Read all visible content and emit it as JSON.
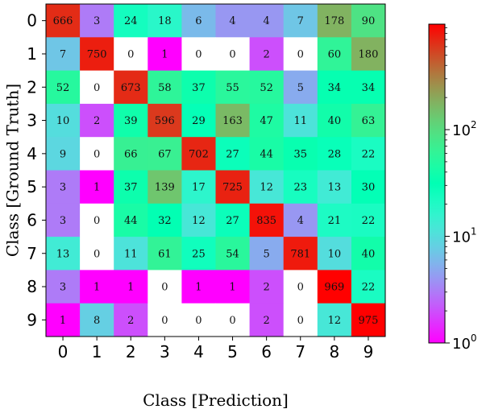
{
  "chart_data": {
    "type": "heatmap",
    "title": "",
    "xlabel": "Class [Prediction]",
    "ylabel": "Class [Ground Truth]",
    "x_categories": [
      "0",
      "1",
      "2",
      "3",
      "4",
      "5",
      "6",
      "7",
      "8",
      "9"
    ],
    "y_categories": [
      "0",
      "1",
      "2",
      "3",
      "4",
      "5",
      "6",
      "7",
      "8",
      "9"
    ],
    "values": [
      [
        666,
        3,
        24,
        18,
        6,
        4,
        4,
        7,
        178,
        90
      ],
      [
        7,
        750,
        0,
        1,
        0,
        0,
        2,
        0,
        60,
        180
      ],
      [
        52,
        0,
        673,
        58,
        37,
        55,
        52,
        5,
        34,
        34
      ],
      [
        10,
        2,
        39,
        596,
        29,
        163,
        47,
        11,
        40,
        63
      ],
      [
        9,
        0,
        66,
        67,
        702,
        27,
        44,
        35,
        28,
        22
      ],
      [
        3,
        1,
        37,
        139,
        17,
        725,
        12,
        23,
        13,
        30
      ],
      [
        3,
        0,
        44,
        32,
        12,
        27,
        835,
        4,
        21,
        22
      ],
      [
        13,
        0,
        11,
        61,
        25,
        54,
        5,
        781,
        10,
        40
      ],
      [
        3,
        1,
        1,
        0,
        1,
        1,
        2,
        0,
        969,
        22
      ],
      [
        1,
        8,
        2,
        0,
        0,
        0,
        2,
        0,
        12,
        975
      ]
    ],
    "color_scale": "log",
    "colormap": "rainbow",
    "zero_color": "#ffffff",
    "vmin": 1,
    "vmax": 975,
    "colorbar": {
      "position": "right",
      "ticks": [
        {
          "value": 1,
          "base": "10",
          "exp": "0"
        },
        {
          "value": 10,
          "base": "10",
          "exp": "1"
        },
        {
          "value": 100,
          "base": "10",
          "exp": "2"
        }
      ]
    },
    "grid": false,
    "legend": "none"
  }
}
